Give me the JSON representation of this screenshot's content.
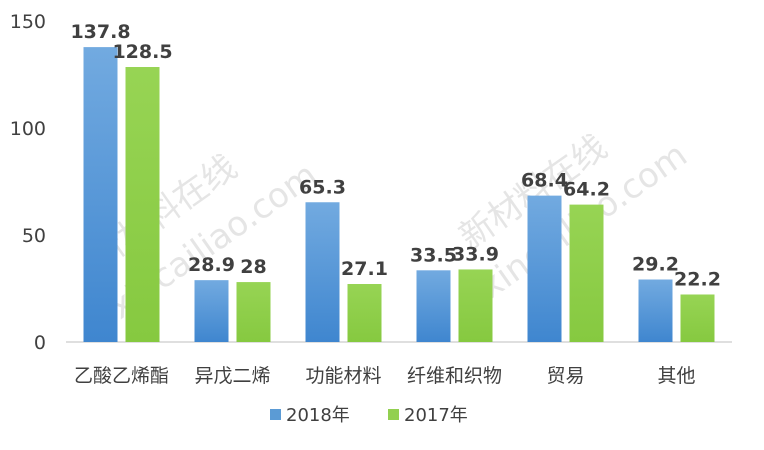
{
  "chart_data": {
    "type": "bar",
    "categories": [
      "乙酸乙烯酯",
      "异戊二烯",
      "功能材料",
      "纤维和织物",
      "贸易",
      "其他"
    ],
    "series": [
      {
        "name": "2018年",
        "values": [
          137.8,
          28.9,
          65.3,
          33.5,
          68.4,
          29.2
        ],
        "labels": [
          "137.8",
          "28.9",
          "65.3",
          "33.5",
          "68.4",
          "29.2"
        ],
        "color": "#5b9bd5"
      },
      {
        "name": "2017年",
        "values": [
          128.5,
          28,
          27.1,
          33.9,
          64.2,
          22.2
        ],
        "labels": [
          "128.5",
          "28",
          "27.1",
          "33.9",
          "64.2",
          "22.2"
        ],
        "color": "#92d050"
      }
    ],
    "yticks": [
      0,
      50,
      100,
      150
    ],
    "ylim": [
      0,
      150
    ],
    "grid": false,
    "legend_position": "bottom"
  },
  "watermark": {
    "line1": "新材料在线",
    "line2": "xincailiao.com"
  }
}
